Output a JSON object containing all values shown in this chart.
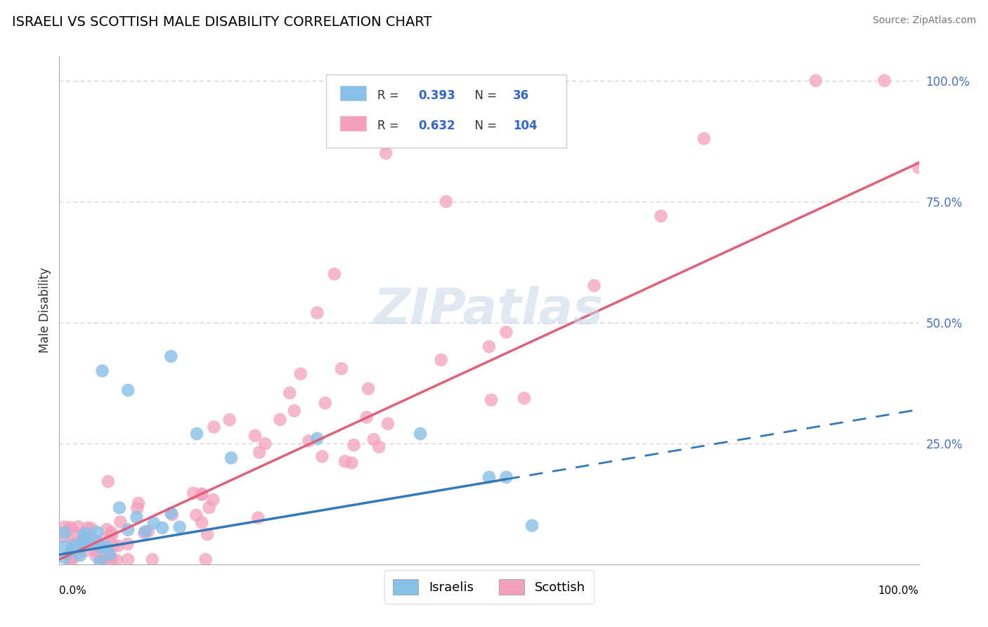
{
  "title": "ISRAELI VS SCOTTISH MALE DISABILITY CORRELATION CHART",
  "source": "Source: ZipAtlas.com",
  "ylabel": "Male Disability",
  "ytick_labels": [
    "25.0%",
    "50.0%",
    "75.0%",
    "100.0%"
  ],
  "ytick_positions": [
    0.25,
    0.5,
    0.75,
    1.0
  ],
  "xlim": [
    0.0,
    1.0
  ],
  "ylim": [
    0.0,
    1.05
  ],
  "israeli_color": "#88c0e8",
  "scottish_color": "#f4a0bc",
  "israeli_line_color": "#3478b8",
  "scottish_line_color": "#e0607a",
  "watermark": "ZIPatlas",
  "israeli_R": "0.393",
  "israeli_N": "36",
  "scottish_R": "0.632",
  "scottish_N": "104",
  "israeli_line_solid_end": 0.52,
  "israeli_line_intercept": 0.02,
  "israeli_line_slope": 0.3,
  "scottish_line_intercept": 0.01,
  "scottish_line_slope": 0.82
}
